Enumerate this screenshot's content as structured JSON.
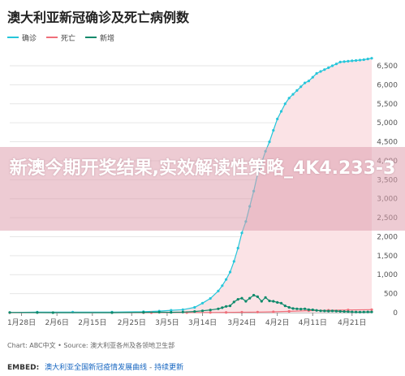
{
  "title": "澳大利亚新冠确诊及死亡病例数",
  "legend": [
    {
      "label": "确诊",
      "color": "#26c6da"
    },
    {
      "label": "死亡",
      "color": "#ef6f7a"
    },
    {
      "label": "新增",
      "color": "#0e8a6b"
    }
  ],
  "source": "Chart: ABC中文 • Source: 澳大利亚各州及各领地卫生部",
  "embed": {
    "label": "EMBED:",
    "link": "澳大利亚全国新冠疫情发展曲线",
    "sep": " - ",
    "suffix": "持续更新"
  },
  "overlay_text": "新澳今期开奖结果,实效解读性策略_4K4.233-3",
  "chart_data": {
    "type": "line",
    "x_start": "2020-01-25",
    "x_end": "2020-04-26",
    "x_tick_labels": [
      "1月28日",
      "2月6日",
      "2月15日",
      "2月25日",
      "3月5日",
      "3月14日",
      "3月24日",
      "4月2日",
      "4月11日",
      "4月21日"
    ],
    "y_tick_labels": [
      "0",
      "500",
      "1,000",
      "1,500",
      "2,000",
      "2,500",
      "3,000",
      "3,500",
      "4,000",
      "4,500",
      "5,000",
      "5,500",
      "6,000",
      "6,500"
    ],
    "ylim": [
      0,
      6800
    ],
    "y_ticks": [
      0,
      500,
      1000,
      1500,
      2000,
      2500,
      3000,
      3500,
      4000,
      4500,
      5000,
      5500,
      6000,
      6500
    ],
    "x_ticks": [
      "2020-01-28",
      "2020-02-06",
      "2020-02-15",
      "2020-02-25",
      "2020-03-05",
      "2020-03-14",
      "2020-03-24",
      "2020-04-02",
      "2020-04-11",
      "2020-04-21"
    ],
    "grid": true,
    "legend_position": "top-left",
    "series": [
      {
        "name": "确诊",
        "color": "#26c6da",
        "fill": "#fbe3e6",
        "points": [
          [
            "2020-01-25",
            4
          ],
          [
            "2020-02-01",
            12
          ],
          [
            "2020-02-10",
            15
          ],
          [
            "2020-02-20",
            15
          ],
          [
            "2020-02-28",
            25
          ],
          [
            "2020-03-03",
            40
          ],
          [
            "2020-03-06",
            63
          ],
          [
            "2020-03-09",
            80
          ],
          [
            "2020-03-12",
            140
          ],
          [
            "2020-03-14",
            250
          ],
          [
            "2020-03-16",
            375
          ],
          [
            "2020-03-18",
            570
          ],
          [
            "2020-03-19",
            710
          ],
          [
            "2020-03-20",
            875
          ],
          [
            "2020-03-21",
            1070
          ],
          [
            "2020-03-22",
            1350
          ],
          [
            "2020-03-23",
            1700
          ],
          [
            "2020-03-24",
            2100
          ],
          [
            "2020-03-25",
            2400
          ],
          [
            "2020-03-26",
            2800
          ],
          [
            "2020-03-27",
            3200
          ],
          [
            "2020-03-28",
            3650
          ],
          [
            "2020-03-29",
            3950
          ],
          [
            "2020-03-30",
            4250
          ],
          [
            "2020-03-31",
            4500
          ],
          [
            "2020-04-01",
            4800
          ],
          [
            "2020-04-02",
            5100
          ],
          [
            "2020-04-03",
            5300
          ],
          [
            "2020-04-04",
            5500
          ],
          [
            "2020-04-05",
            5650
          ],
          [
            "2020-04-06",
            5750
          ],
          [
            "2020-04-07",
            5850
          ],
          [
            "2020-04-08",
            5950
          ],
          [
            "2020-04-09",
            6050
          ],
          [
            "2020-04-10",
            6100
          ],
          [
            "2020-04-11",
            6200
          ],
          [
            "2020-04-12",
            6300
          ],
          [
            "2020-04-13",
            6350
          ],
          [
            "2020-04-14",
            6400
          ],
          [
            "2020-04-15",
            6450
          ],
          [
            "2020-04-16",
            6500
          ],
          [
            "2020-04-17",
            6550
          ],
          [
            "2020-04-18",
            6600
          ],
          [
            "2020-04-19",
            6610
          ],
          [
            "2020-04-20",
            6620
          ],
          [
            "2020-04-21",
            6630
          ],
          [
            "2020-04-22",
            6640
          ],
          [
            "2020-04-23",
            6650
          ],
          [
            "2020-04-24",
            6660
          ],
          [
            "2020-04-25",
            6680
          ],
          [
            "2020-04-26",
            6700
          ]
        ]
      },
      {
        "name": "死亡",
        "color": "#ef6f7a",
        "points": [
          [
            "2020-01-25",
            0
          ],
          [
            "2020-02-28",
            0
          ],
          [
            "2020-03-01",
            1
          ],
          [
            "2020-03-10",
            3
          ],
          [
            "2020-03-16",
            5
          ],
          [
            "2020-03-20",
            7
          ],
          [
            "2020-03-24",
            10
          ],
          [
            "2020-03-28",
            14
          ],
          [
            "2020-04-01",
            21
          ],
          [
            "2020-04-05",
            35
          ],
          [
            "2020-04-10",
            54
          ],
          [
            "2020-04-15",
            63
          ],
          [
            "2020-04-20",
            71
          ],
          [
            "2020-04-26",
            80
          ]
        ]
      },
      {
        "name": "新增",
        "color": "#0e8a6b",
        "points": [
          [
            "2020-01-25",
            4
          ],
          [
            "2020-02-01",
            2
          ],
          [
            "2020-02-05",
            0
          ],
          [
            "2020-02-20",
            0
          ],
          [
            "2020-02-28",
            8
          ],
          [
            "2020-03-03",
            12
          ],
          [
            "2020-03-06",
            8
          ],
          [
            "2020-03-09",
            15
          ],
          [
            "2020-03-12",
            30
          ],
          [
            "2020-03-14",
            50
          ],
          [
            "2020-03-16",
            70
          ],
          [
            "2020-03-18",
            100
          ],
          [
            "2020-03-19",
            130
          ],
          [
            "2020-03-20",
            165
          ],
          [
            "2020-03-21",
            180
          ],
          [
            "2020-03-22",
            280
          ],
          [
            "2020-03-23",
            350
          ],
          [
            "2020-03-24",
            380
          ],
          [
            "2020-03-25",
            300
          ],
          [
            "2020-03-26",
            380
          ],
          [
            "2020-03-27",
            460
          ],
          [
            "2020-03-28",
            420
          ],
          [
            "2020-03-29",
            300
          ],
          [
            "2020-03-30",
            400
          ],
          [
            "2020-03-31",
            310
          ],
          [
            "2020-04-01",
            300
          ],
          [
            "2020-04-02",
            270
          ],
          [
            "2020-04-03",
            250
          ],
          [
            "2020-04-04",
            180
          ],
          [
            "2020-04-05",
            140
          ],
          [
            "2020-04-06",
            110
          ],
          [
            "2020-04-07",
            100
          ],
          [
            "2020-04-08",
            95
          ],
          [
            "2020-04-09",
            100
          ],
          [
            "2020-04-10",
            80
          ],
          [
            "2020-04-11",
            75
          ],
          [
            "2020-04-12",
            60
          ],
          [
            "2020-04-13",
            50
          ],
          [
            "2020-04-14",
            45
          ],
          [
            "2020-04-15",
            40
          ],
          [
            "2020-04-16",
            45
          ],
          [
            "2020-04-17",
            40
          ],
          [
            "2020-04-18",
            35
          ],
          [
            "2020-04-19",
            30
          ],
          [
            "2020-04-20",
            25
          ],
          [
            "2020-04-21",
            20
          ],
          [
            "2020-04-22",
            18
          ],
          [
            "2020-04-23",
            15
          ],
          [
            "2020-04-24",
            18
          ],
          [
            "2020-04-25",
            20
          ],
          [
            "2020-04-26",
            20
          ]
        ]
      }
    ]
  }
}
